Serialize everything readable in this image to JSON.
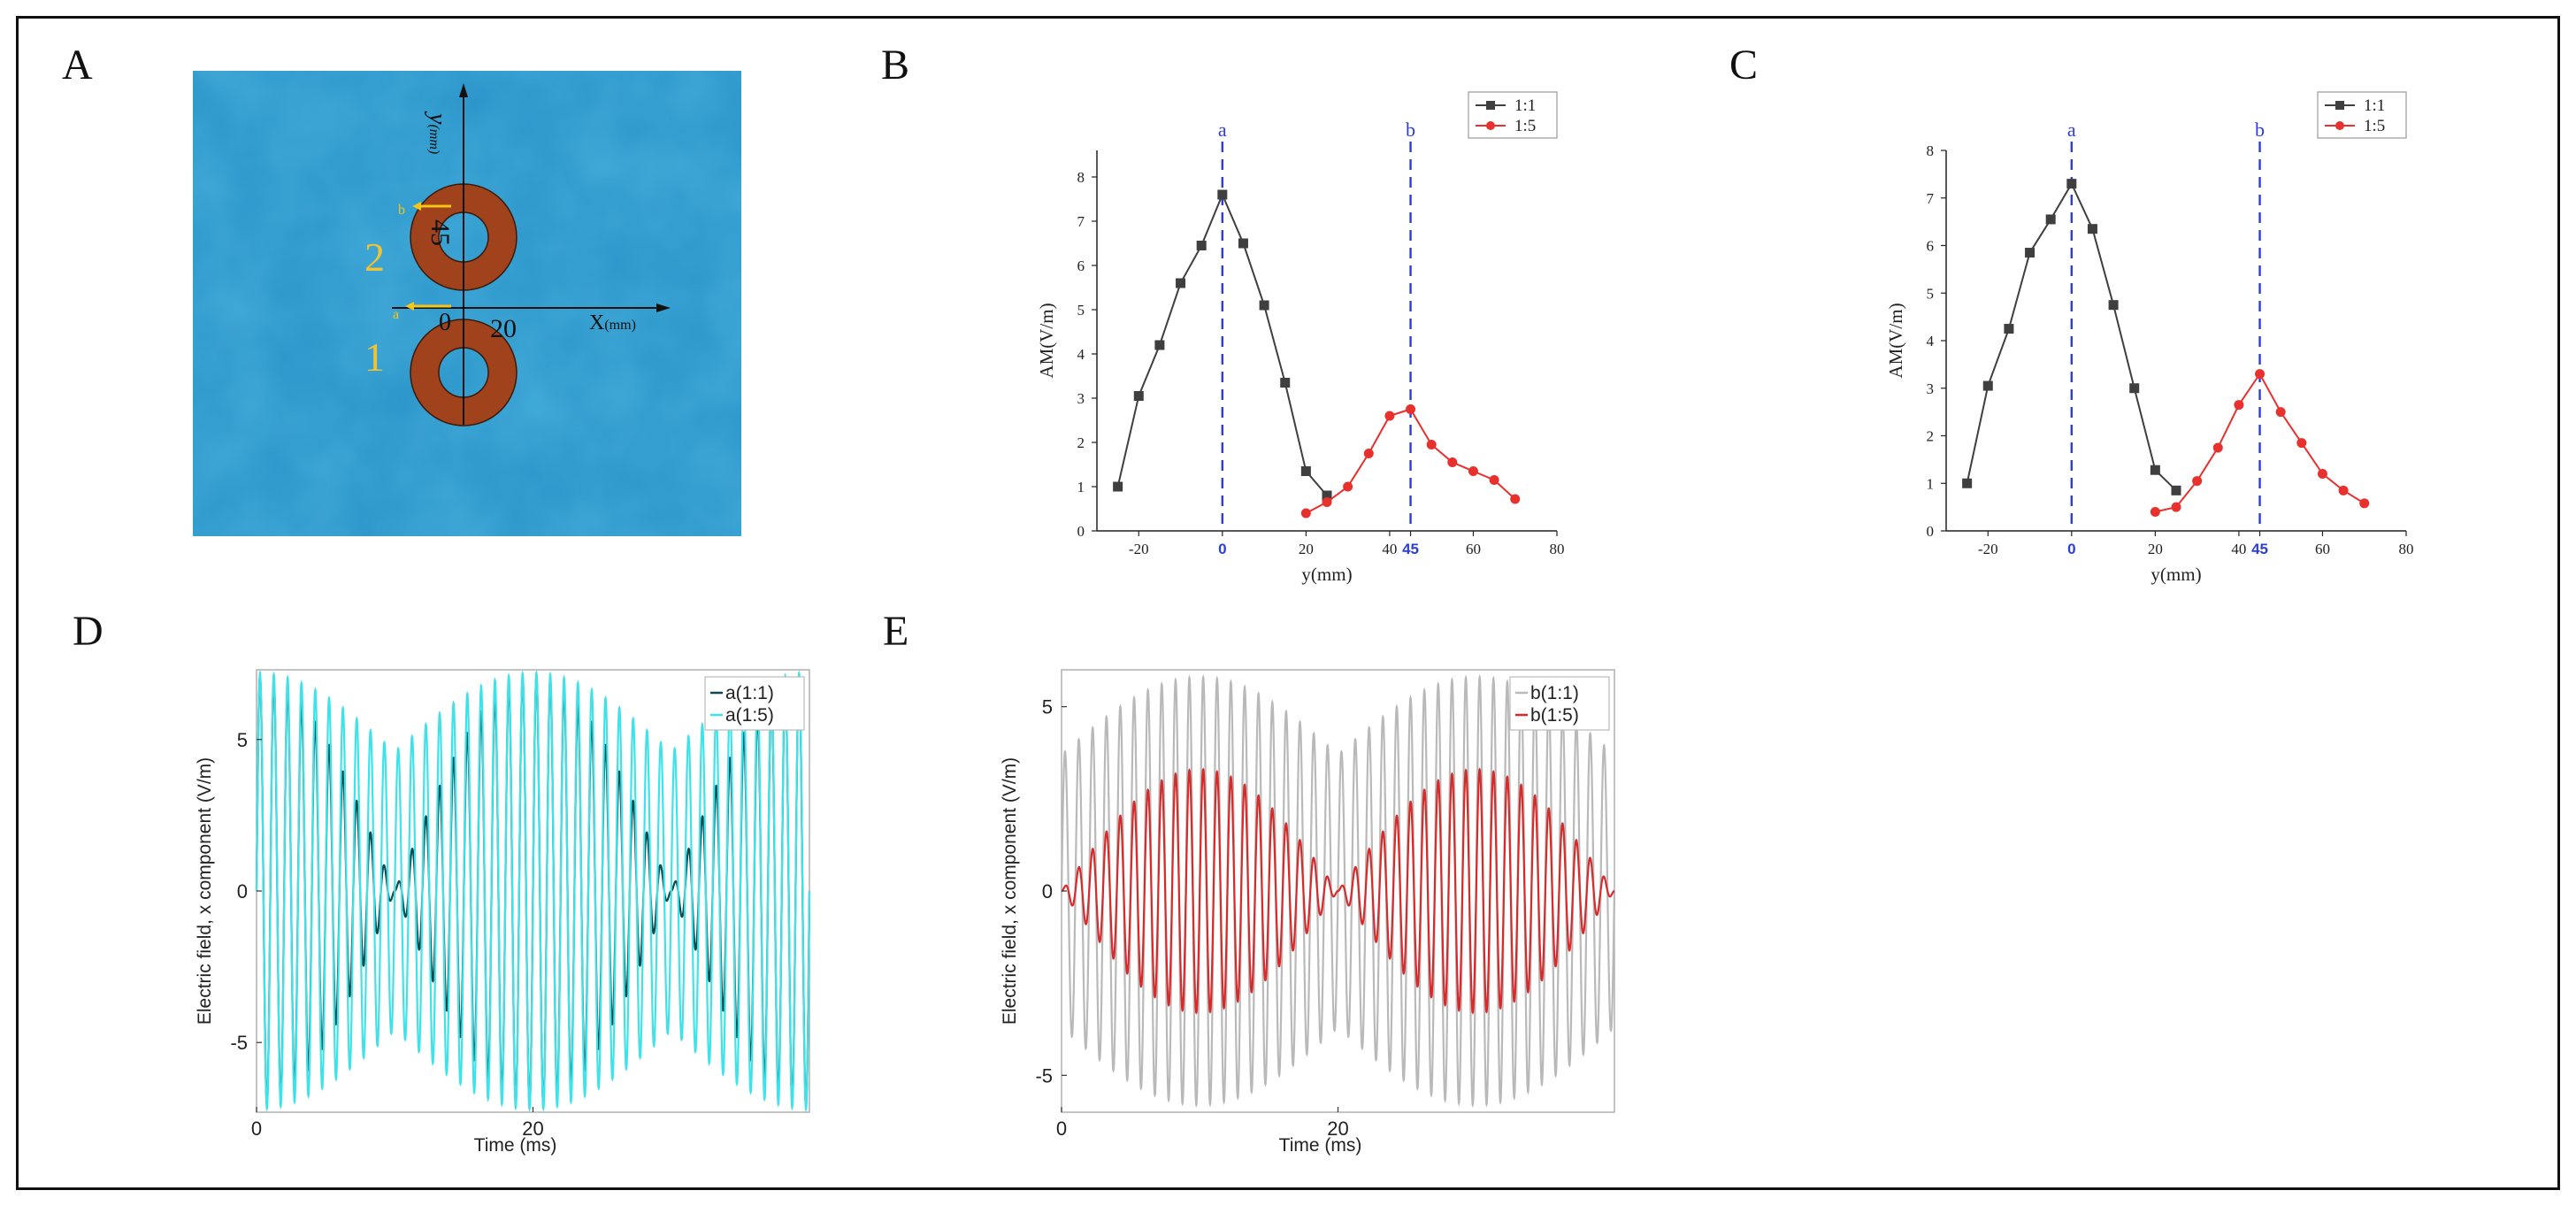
{
  "panels": {
    "A": {
      "letter": "A",
      "y_axis_label": "y",
      "y_axis_unit": "(mm)",
      "x_axis_label": "X",
      "x_axis_unit": "(mm)",
      "tick_45": "45",
      "tick_0": "0",
      "tick_20": "20",
      "marker_a": "a",
      "marker_b": "b",
      "electrode_1": "1",
      "electrode_2": "2",
      "colors": {
        "background": "#2a93c9",
        "ring": "#a0421c",
        "marker": "#f5c518",
        "label": "#f1c232"
      }
    },
    "B": {
      "letter": "B"
    },
    "C": {
      "letter": "C"
    },
    "D": {
      "letter": "D"
    },
    "E": {
      "letter": "E"
    }
  },
  "chart_data": [
    {
      "id": "B",
      "type": "line",
      "xlabel": "y(mm)",
      "ylabel": "AM(V/m)",
      "xlim": [
        -30,
        80
      ],
      "ylim": [
        0,
        8.6
      ],
      "xticks": [
        "-20",
        "0",
        "20",
        "40",
        "45",
        "60",
        "80"
      ],
      "yticks": [
        "0",
        "1",
        "2",
        "3",
        "4",
        "5",
        "6",
        "7",
        "8"
      ],
      "vlines": [
        {
          "x": 0,
          "label": "a"
        },
        {
          "x": 45,
          "label": "b"
        }
      ],
      "legend": "top-right",
      "series": [
        {
          "name": "1:1",
          "color": "#3f3f3f",
          "marker": "square",
          "x": [
            -25,
            -20,
            -15,
            -10,
            -5,
            0,
            5,
            10,
            15,
            20,
            25
          ],
          "y": [
            1.0,
            3.05,
            4.2,
            5.6,
            6.45,
            7.6,
            6.5,
            5.1,
            3.35,
            1.35,
            0.8
          ]
        },
        {
          "name": "1:5",
          "color": "#e8302c",
          "marker": "circle",
          "x": [
            20,
            25,
            30,
            35,
            40,
            45,
            50,
            55,
            60,
            65,
            70
          ],
          "y": [
            0.4,
            0.65,
            1.0,
            1.75,
            2.6,
            2.75,
            1.95,
            1.55,
            1.35,
            1.15,
            0.72
          ]
        }
      ]
    },
    {
      "id": "C",
      "type": "line",
      "xlabel": "y(mm)",
      "ylabel": "AM(V/m)",
      "xlim": [
        -30,
        80
      ],
      "ylim": [
        0,
        8
      ],
      "xticks": [
        "-20",
        "0",
        "20",
        "40",
        "45",
        "60",
        "80"
      ],
      "yticks": [
        "0",
        "1",
        "2",
        "3",
        "4",
        "5",
        "6",
        "7",
        "8"
      ],
      "vlines": [
        {
          "x": 0,
          "label": "a"
        },
        {
          "x": 45,
          "label": "b"
        }
      ],
      "legend": "top-right",
      "series": [
        {
          "name": "1:1",
          "color": "#3f3f3f",
          "marker": "square",
          "x": [
            -25,
            -20,
            -15,
            -10,
            -5,
            0,
            5,
            10,
            15,
            20,
            25
          ],
          "y": [
            1.0,
            3.05,
            4.25,
            5.85,
            6.55,
            7.3,
            6.35,
            4.75,
            3.0,
            1.28,
            0.85
          ]
        },
        {
          "name": "1:5",
          "color": "#e8302c",
          "marker": "circle",
          "x": [
            20,
            25,
            30,
            35,
            40,
            45,
            50,
            55,
            60,
            65,
            70
          ],
          "y": [
            0.4,
            0.5,
            1.05,
            1.75,
            2.65,
            3.3,
            2.5,
            1.85,
            1.2,
            0.85,
            0.58
          ]
        }
      ]
    },
    {
      "id": "D",
      "type": "line",
      "xlabel": "Time (ms)",
      "ylabel": "Electric field, x component (V/m)",
      "xlim": [
        0,
        40
      ],
      "ylim": [
        -7.3,
        7.3
      ],
      "xticks": [
        "0",
        "20"
      ],
      "yticks": [
        "-5",
        "0",
        "5"
      ],
      "legend": "top-right",
      "series": [
        {
          "name": "a(1:1)",
          "color": "#0f4a50",
          "carrier_hz": 1000,
          "beat_hz": 50,
          "envelope": "abs_cos_beat",
          "amplitude": 7.1
        },
        {
          "name": "a(1:5)",
          "color": "#3ee3ea",
          "carrier_hz": 1000,
          "beat_hz": 50,
          "envelope": "offset",
          "amplitude_min": 4.6,
          "amplitude_max": 7.2
        }
      ]
    },
    {
      "id": "E",
      "type": "line",
      "xlabel": "Time (ms)",
      "ylabel": "Electric field, x component (V/m)",
      "xlim": [
        0,
        40
      ],
      "ylim": [
        -6,
        6
      ],
      "xticks": [
        "0",
        "20"
      ],
      "yticks": [
        "-5",
        "0",
        "5"
      ],
      "legend": "top-right",
      "series": [
        {
          "name": "b(1:1)",
          "color": "#b9b9b9",
          "carrier_hz": 1000,
          "beat_hz": 50,
          "envelope": "offset",
          "amplitude_min": 3.7,
          "amplitude_max": 5.8
        },
        {
          "name": "b(1:5)",
          "color": "#d82a2a",
          "carrier_hz": 1000,
          "beat_hz": 50,
          "envelope": "abs_sin_beat",
          "amplitude": 3.3
        }
      ]
    }
  ]
}
